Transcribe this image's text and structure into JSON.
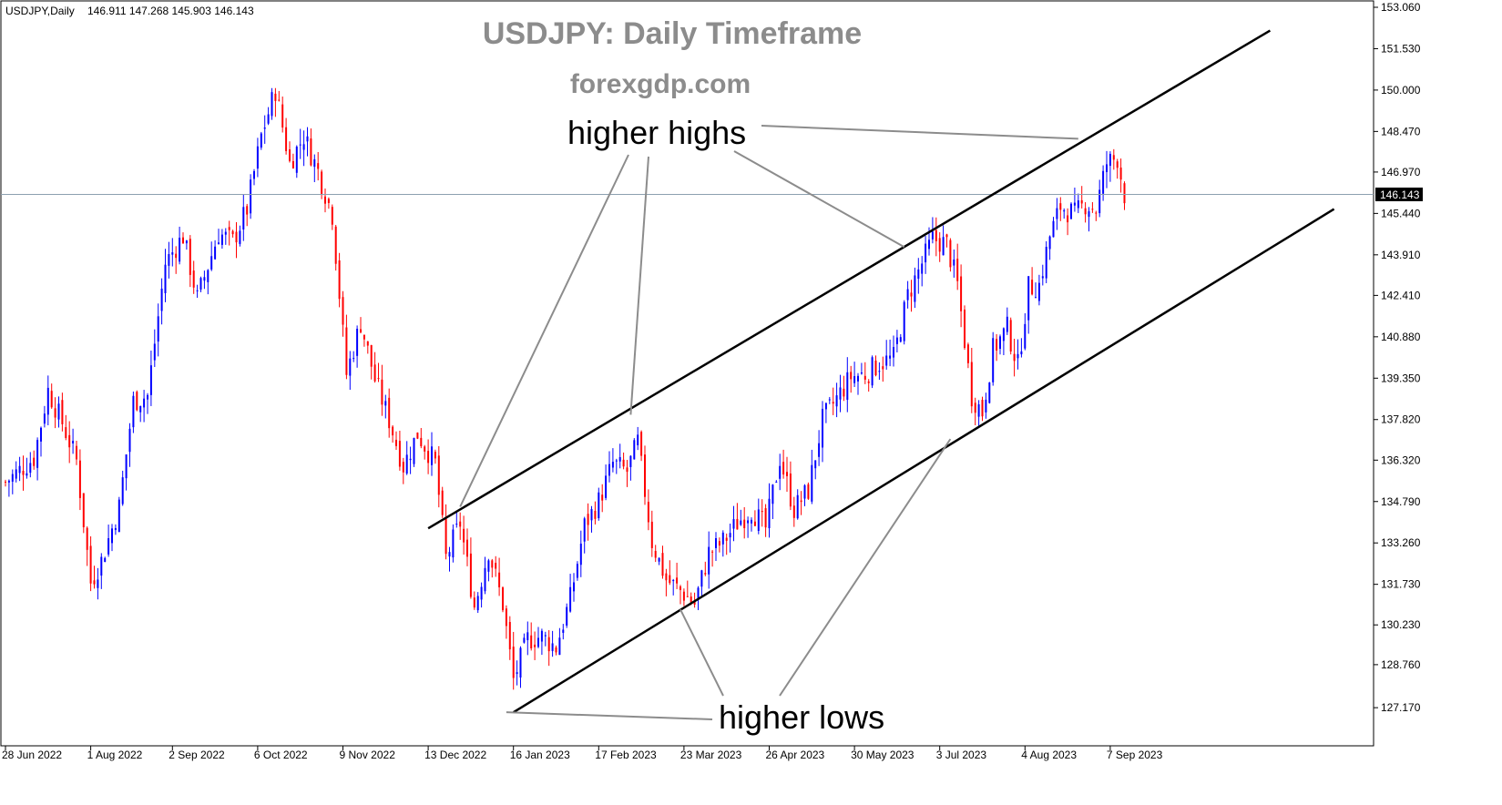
{
  "header": {
    "symbol_label": "USDJPY,Daily",
    "ohlc_text": "146.911 147.268 145.903 146.143"
  },
  "titles": {
    "title": "USDJPY: Daily Timeframe",
    "site": "forexgdp.com"
  },
  "annotations": {
    "higher_highs": "higher highs",
    "higher_lows": "higher lows"
  },
  "colors": {
    "bull": "#0000ff",
    "bear": "#ff0000",
    "trendline": "#000000",
    "pointer": "#8c8c8c",
    "price_line": "#8ca0b0",
    "current_label_bg": "#000000"
  },
  "chart_data": {
    "type": "candlestick",
    "symbol": "USDJPY",
    "timeframe": "Daily",
    "current_price": 146.143,
    "current_price_label": "146.143",
    "ylim": [
      126.4,
      153.06
    ],
    "y_ticks": [
      "153.060",
      "151.530",
      "150.000",
      "148.470",
      "146.970",
      "145.440",
      "143.910",
      "142.410",
      "140.880",
      "139.350",
      "137.820",
      "136.320",
      "134.790",
      "133.260",
      "131.730",
      "130.230",
      "128.760",
      "127.170"
    ],
    "x_tick_labels": [
      "28 Jun 2022",
      "1 Aug 2022",
      "2 Sep 2022",
      "6 Oct 2022",
      "9 Nov 2022",
      "13 Dec 2022",
      "16 Jan 2023",
      "17 Feb 2023",
      "23 Mar 2023",
      "26 Apr 2023",
      "30 May 2023",
      "3 Jul 2023",
      "4 Aug 2023",
      "7 Sep 2023"
    ],
    "x_tick_bar_index": [
      0,
      24,
      47,
      71,
      95,
      119,
      143,
      167,
      191,
      215,
      239,
      263,
      287,
      311
    ],
    "bar_count": 316,
    "anchors": [
      {
        "i": 0,
        "p": 135.5
      },
      {
        "i": 8,
        "p": 136.4
      },
      {
        "i": 12,
        "p": 138.9
      },
      {
        "i": 16,
        "p": 137.7
      },
      {
        "i": 20,
        "p": 136.3
      },
      {
        "i": 24,
        "p": 131.8
      },
      {
        "i": 27,
        "p": 132.6
      },
      {
        "i": 32,
        "p": 134.6
      },
      {
        "i": 36,
        "p": 138.5
      },
      {
        "i": 40,
        "p": 138.7
      },
      {
        "i": 45,
        "p": 143.6
      },
      {
        "i": 50,
        "p": 144.6
      },
      {
        "i": 54,
        "p": 142.3
      },
      {
        "i": 60,
        "p": 144.7
      },
      {
        "i": 64,
        "p": 144.4
      },
      {
        "i": 68,
        "p": 145.6
      },
      {
        "i": 72,
        "p": 148.3
      },
      {
        "i": 76,
        "p": 150.0
      },
      {
        "i": 80,
        "p": 147.3
      },
      {
        "i": 84,
        "p": 148.3
      },
      {
        "i": 88,
        "p": 147.0
      },
      {
        "i": 92,
        "p": 145.4
      },
      {
        "i": 96,
        "p": 139.5
      },
      {
        "i": 100,
        "p": 141.4
      },
      {
        "i": 104,
        "p": 139.3
      },
      {
        "i": 108,
        "p": 137.8
      },
      {
        "i": 112,
        "p": 136.1
      },
      {
        "i": 116,
        "p": 137.3
      },
      {
        "i": 121,
        "p": 136.2
      },
      {
        "i": 124,
        "p": 132.7
      },
      {
        "i": 128,
        "p": 134.0
      },
      {
        "i": 132,
        "p": 130.9
      },
      {
        "i": 136,
        "p": 133.0
      },
      {
        "i": 140,
        "p": 131.0
      },
      {
        "i": 143,
        "p": 128.2
      },
      {
        "i": 147,
        "p": 129.7
      },
      {
        "i": 151,
        "p": 129.8
      },
      {
        "i": 155,
        "p": 129.4
      },
      {
        "i": 159,
        "p": 131.2
      },
      {
        "i": 163,
        "p": 133.9
      },
      {
        "i": 167,
        "p": 134.8
      },
      {
        "i": 171,
        "p": 136.2
      },
      {
        "i": 175,
        "p": 135.9
      },
      {
        "i": 178,
        "p": 137.0
      },
      {
        "i": 182,
        "p": 133.3
      },
      {
        "i": 186,
        "p": 131.9
      },
      {
        "i": 190,
        "p": 131.5
      },
      {
        "i": 194,
        "p": 131.0
      },
      {
        "i": 198,
        "p": 132.9
      },
      {
        "i": 202,
        "p": 133.3
      },
      {
        "i": 206,
        "p": 134.0
      },
      {
        "i": 210,
        "p": 134.5
      },
      {
        "i": 214,
        "p": 133.8
      },
      {
        "i": 218,
        "p": 136.4
      },
      {
        "i": 222,
        "p": 134.5
      },
      {
        "i": 226,
        "p": 135.2
      },
      {
        "i": 230,
        "p": 137.8
      },
      {
        "i": 234,
        "p": 138.6
      },
      {
        "i": 238,
        "p": 139.4
      },
      {
        "i": 242,
        "p": 139.5
      },
      {
        "i": 246,
        "p": 139.9
      },
      {
        "i": 250,
        "p": 140.1
      },
      {
        "i": 254,
        "p": 142.4
      },
      {
        "i": 258,
        "p": 143.6
      },
      {
        "i": 261,
        "p": 144.5
      },
      {
        "i": 265,
        "p": 144.3
      },
      {
        "i": 268,
        "p": 142.8
      },
      {
        "i": 272,
        "p": 138.7
      },
      {
        "i": 275,
        "p": 138.1
      },
      {
        "i": 278,
        "p": 140.4
      },
      {
        "i": 282,
        "p": 141.2
      },
      {
        "i": 285,
        "p": 139.8
      },
      {
        "i": 288,
        "p": 142.7
      },
      {
        "i": 291,
        "p": 142.8
      },
      {
        "i": 294,
        "p": 144.6
      },
      {
        "i": 297,
        "p": 145.7
      },
      {
        "i": 301,
        "p": 145.4
      },
      {
        "i": 304,
        "p": 145.8
      },
      {
        "i": 307,
        "p": 145.6
      },
      {
        "i": 310,
        "p": 147.3
      },
      {
        "i": 313,
        "p": 147.5
      },
      {
        "i": 315,
        "p": 146.143
      }
    ],
    "channel": {
      "upper": {
        "from": {
          "i": 119,
          "p": 133.8
        },
        "to": {
          "i": 356,
          "p": 152.2
        }
      },
      "lower": {
        "from": {
          "i": 143,
          "p": 127.0
        },
        "to": {
          "i": 374,
          "p": 145.6
        }
      }
    }
  }
}
